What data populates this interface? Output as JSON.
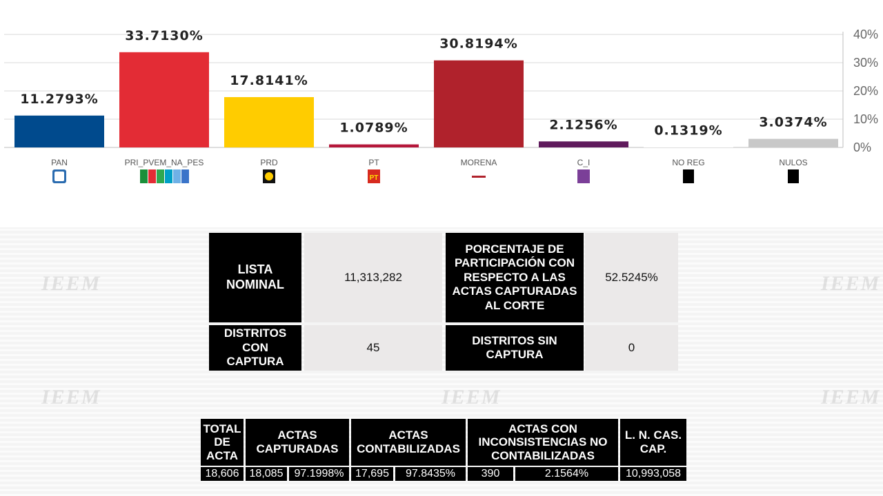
{
  "chart_data": {
    "type": "bar",
    "categories": [
      "PAN",
      "PRI_PVEM_NA_PES",
      "PRD",
      "PT",
      "MORENA",
      "C_I",
      "NO REG",
      "NULOS"
    ],
    "values": [
      11.2793,
      33.713,
      17.8141,
      1.0789,
      30.8194,
      2.1256,
      0.1319,
      3.0374
    ],
    "value_labels": [
      "11.2793%",
      "33.7130%",
      "17.8141%",
      "1.0789%",
      "30.8194%",
      "2.1256%",
      "0.1319%",
      "3.0374%"
    ],
    "colors": [
      "#004a8d",
      "#e32c35",
      "#ffcc00",
      "#b5173a",
      "#b0222c",
      "#5f1a5c",
      "#ffffff",
      "#c8c8c8"
    ],
    "ylim": [
      0,
      40
    ],
    "yticks": [
      "0%",
      "10%",
      "20%",
      "30%",
      "40%"
    ],
    "y_axis_side": "right",
    "grid": true,
    "logos": [
      "pan-logo",
      "pri-pvem-na-pes-logos",
      "prd-logo",
      "pt-logo",
      "morena-logo",
      "ci-logo",
      "no-reg-logo",
      "nulos-logo"
    ]
  },
  "summary": {
    "lista_nominal_label": "LISTA NOMINAL",
    "lista_nominal_value": "11,313,282",
    "participacion_label": "PORCENTAJE DE PARTICIPACIÓN CON RESPECTO A LAS ACTAS CAPTURADAS AL CORTE",
    "participacion_value": "52.5245%",
    "distritos_con_label": "DISTRITOS CON CAPTURA",
    "distritos_con_value": "45",
    "distritos_sin_label": "DISTRITOS SIN CAPTURA",
    "distritos_sin_value": "0"
  },
  "actas": {
    "headers": {
      "total": "TOTAL DE ACTA",
      "capturadas": "ACTAS CAPTURADAS",
      "contabilizadas": "ACTAS CONTABILIZADAS",
      "inconsistencias": "ACTAS CON INCONSISTENCIAS NO CONTABILIZADAS",
      "ln": "L. N. CAS. CAP."
    },
    "values": {
      "total": "18,606",
      "capturadas_n": "18,085",
      "capturadas_pct": "97.1998%",
      "contabilizadas_n": "17,695",
      "contabilizadas_pct": "97.8435%",
      "inconsistencias_n": "390",
      "inconsistencias_pct": "2.1564%",
      "ln": "10,993,058"
    }
  },
  "watermark_text": "IEEM"
}
